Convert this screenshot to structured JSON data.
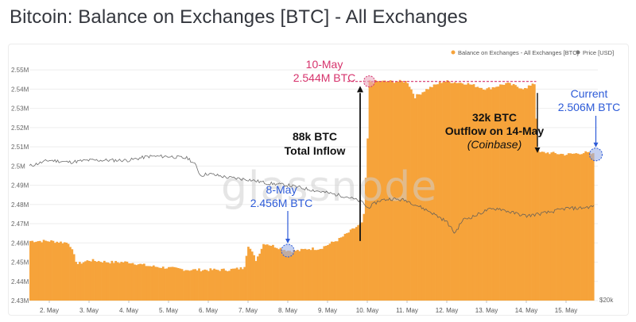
{
  "title": "Bitcoin: Balance on Exchanges [BTC] - All Exchanges",
  "colors": {
    "bars": "#f6a33a",
    "price_line": "#5b5b5b",
    "annotation_pink": "#d6336c",
    "annotation_blue": "#2d5bd8",
    "annotation_dark": "#111111"
  },
  "legend": {
    "balance_label": "Balance on Exchanges - All Exchanges [BTC]",
    "price_label": "Price [USD]"
  },
  "watermark": "glassnode",
  "annotations": {
    "peak": {
      "date": "10-May",
      "value": "2.544M BTC"
    },
    "low": {
      "date": "8-May",
      "value": "2.456M BTC"
    },
    "current": {
      "date": "Current",
      "value": "2.506M BTC"
    },
    "inflow": {
      "amount": "88k BTC",
      "label": "Total Inflow"
    },
    "outflow": {
      "amount": "32k BTC",
      "label": "Outflow on 14-May",
      "source": "(Coinbase)"
    }
  },
  "chart_data": {
    "type": "bar",
    "title": "Bitcoin: Balance on Exchanges [BTC] - All Exchanges",
    "ylim": [
      2.43,
      2.555
    ],
    "y_unit": "M BTC",
    "y_ticks": [
      "2.43M",
      "2.44M",
      "2.45M",
      "2.46M",
      "2.47M",
      "2.48M",
      "2.49M",
      "2.5M",
      "2.51M",
      "2.52M",
      "2.53M",
      "2.54M",
      "2.55M"
    ],
    "y_tick_values": [
      2.43,
      2.44,
      2.45,
      2.46,
      2.47,
      2.48,
      2.49,
      2.5,
      2.51,
      2.52,
      2.53,
      2.54,
      2.55
    ],
    "right_axis_label": "$20k",
    "x_ticks": [
      "2. May",
      "3. May",
      "4. May",
      "5. May",
      "6. May",
      "7. May",
      "8. May",
      "9. May",
      "10. May",
      "11. May",
      "12. May",
      "13. May",
      "14. May",
      "15. May"
    ],
    "x_range_days": [
      1.5,
      15.8
    ],
    "legend_position": "top-right",
    "series": [
      {
        "name": "Balance on Exchanges - All Exchanges [BTC]",
        "x_days": [
          1.5,
          2.0,
          2.5,
          2.7,
          3.0,
          3.5,
          4.0,
          4.5,
          5.0,
          5.5,
          6.0,
          6.5,
          6.9,
          7.0,
          7.2,
          7.4,
          7.7,
          8.0,
          8.3,
          8.5,
          8.8,
          9.0,
          9.3,
          9.5,
          9.7,
          9.85,
          9.9,
          10.0,
          10.05,
          10.5,
          11.0,
          11.2,
          11.5,
          11.9,
          12.0,
          12.5,
          13.0,
          13.5,
          14.0,
          14.2,
          14.3,
          14.5,
          15.0,
          15.5,
          15.7
        ],
        "values": [
          2.461,
          2.461,
          2.46,
          2.449,
          2.451,
          2.45,
          2.45,
          2.448,
          2.447,
          2.446,
          2.446,
          2.446,
          2.447,
          2.459,
          2.451,
          2.46,
          2.458,
          2.456,
          2.456,
          2.457,
          2.457,
          2.459,
          2.462,
          2.465,
          2.468,
          2.47,
          2.47,
          2.508,
          2.544,
          2.544,
          2.544,
          2.536,
          2.54,
          2.544,
          2.544,
          2.543,
          2.54,
          2.543,
          2.54,
          2.544,
          2.507,
          2.507,
          2.506,
          2.507,
          2.506
        ]
      },
      {
        "name": "Price [USD]",
        "x_days": [
          1.5,
          2.0,
          2.5,
          3.0,
          3.5,
          4.0,
          4.5,
          5.0,
          5.5,
          5.7,
          5.8,
          6.0,
          6.5,
          7.0,
          7.5,
          8.0,
          8.5,
          9.0,
          9.5,
          9.9,
          10.0,
          10.3,
          10.6,
          11.0,
          11.3,
          11.6,
          12.0,
          12.2,
          12.4,
          12.7,
          13.0,
          13.3,
          13.6,
          14.0,
          14.3,
          14.6,
          15.0,
          15.3,
          15.7
        ],
        "values": [
          2.5,
          2.503,
          2.502,
          2.503,
          2.503,
          2.503,
          2.505,
          2.505,
          2.504,
          2.5,
          2.495,
          2.496,
          2.494,
          2.493,
          2.491,
          2.49,
          2.488,
          2.486,
          2.484,
          2.481,
          2.478,
          2.482,
          2.483,
          2.482,
          2.479,
          2.476,
          2.471,
          2.465,
          2.472,
          2.474,
          2.477,
          2.478,
          2.476,
          2.474,
          2.475,
          2.476,
          2.478,
          2.478,
          2.479
        ]
      }
    ]
  }
}
